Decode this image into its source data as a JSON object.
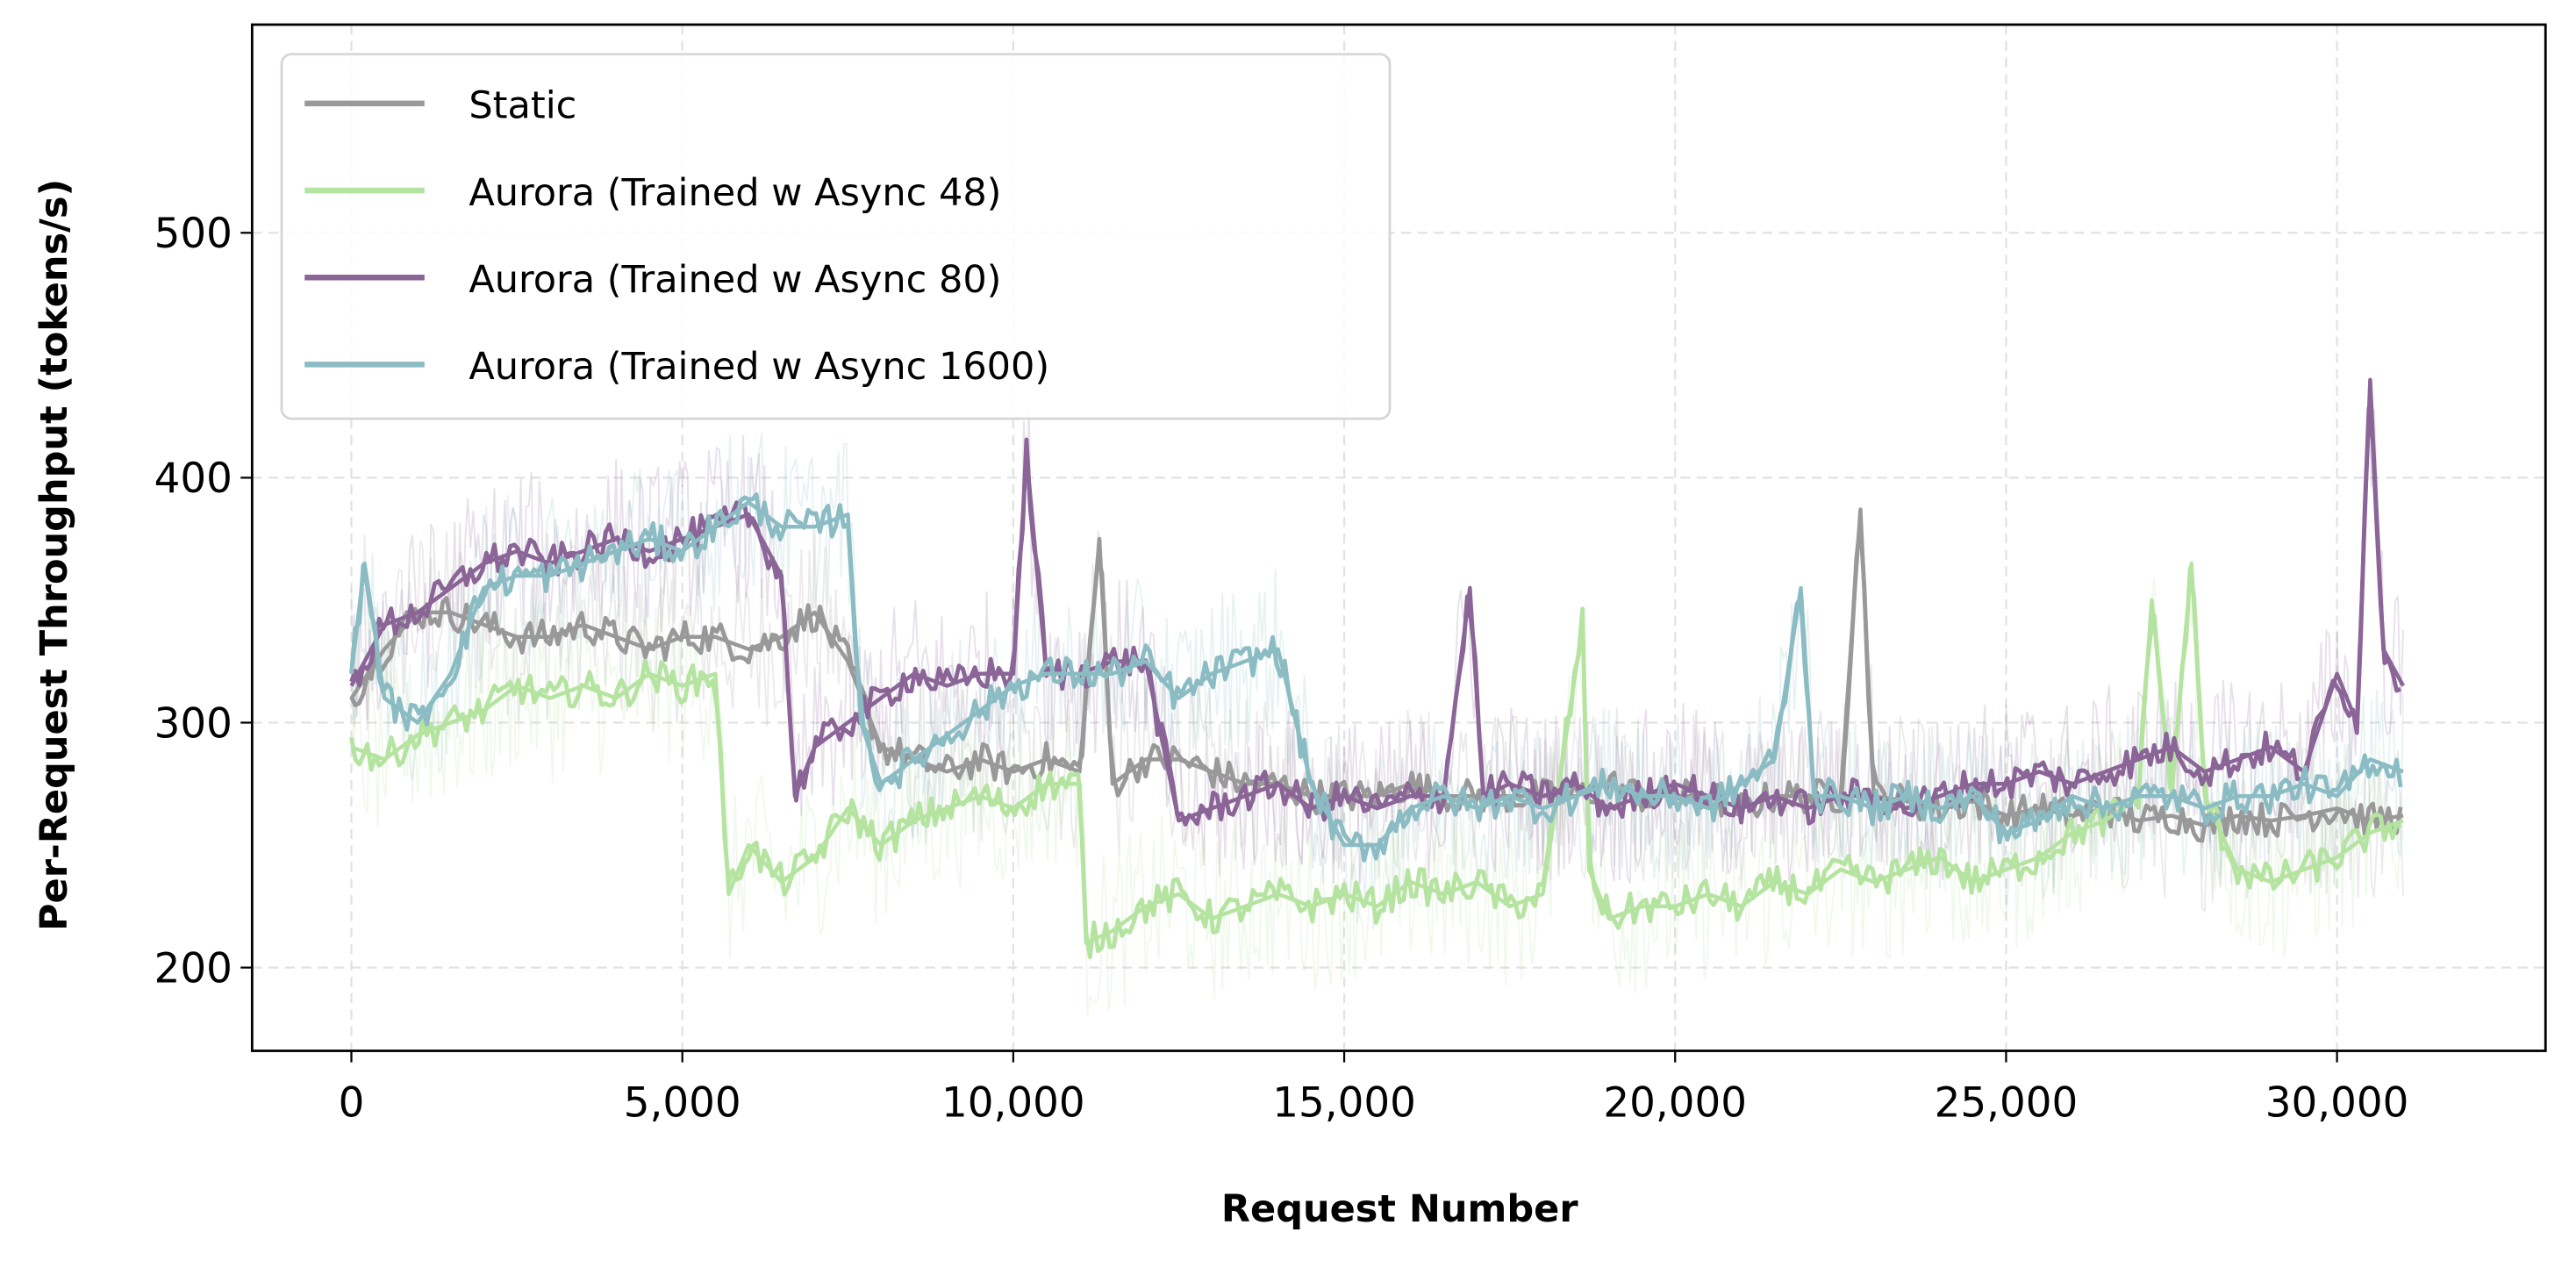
{
  "chart_data": {
    "type": "line",
    "title": "",
    "xlabel": "Request Number",
    "ylabel": "Per-Request Throughput (tokens/s)",
    "xlim": [
      -1500,
      33150
    ],
    "ylim": [
      166,
      585
    ],
    "xticks": [
      0,
      5000,
      10000,
      15000,
      20000,
      25000,
      30000
    ],
    "xtick_labels": [
      "0",
      "5,000",
      "10,000",
      "15,000",
      "20,000",
      "25,000",
      "30,000"
    ],
    "yticks": [
      200,
      300,
      400,
      500
    ],
    "ytick_labels": [
      "200",
      "300",
      "400",
      "500"
    ],
    "grid": true,
    "legend_position": "top-left",
    "series": [
      {
        "name": "Static",
        "color": "#999999",
        "x": [
          0,
          500,
          1000,
          1500,
          2000,
          2500,
          3000,
          3500,
          4000,
          4500,
          5000,
          5500,
          6000,
          6500,
          7000,
          7500,
          8000,
          8500,
          9000,
          9500,
          10000,
          10500,
          11000,
          11300,
          11500,
          12000,
          12500,
          13000,
          13500,
          14000,
          14500,
          15000,
          15500,
          16000,
          16500,
          17000,
          17500,
          18000,
          18500,
          19000,
          19500,
          20000,
          20500,
          21000,
          21500,
          22000,
          22500,
          22800,
          23000,
          23500,
          24000,
          24500,
          25000,
          25500,
          26000,
          26500,
          27000,
          27500,
          28000,
          28500,
          29000,
          29500,
          30000,
          30500,
          31000
        ],
        "y": [
          310,
          330,
          345,
          345,
          340,
          335,
          335,
          340,
          335,
          330,
          335,
          335,
          330,
          335,
          345,
          325,
          290,
          285,
          280,
          285,
          280,
          285,
          280,
          375,
          275,
          285,
          285,
          280,
          275,
          275,
          270,
          270,
          270,
          275,
          270,
          270,
          270,
          270,
          270,
          275,
          270,
          270,
          270,
          265,
          270,
          270,
          270,
          387,
          270,
          268,
          265,
          268,
          262,
          265,
          262,
          265,
          260,
          262,
          258,
          262,
          260,
          262,
          265,
          260,
          262
        ]
      },
      {
        "name": "Aurora (Trained w Async 48)",
        "color": "#b5e3a0",
        "x": [
          0,
          500,
          1000,
          1500,
          2000,
          2500,
          3000,
          3500,
          4000,
          4500,
          5000,
          5500,
          5700,
          6000,
          6500,
          7000,
          7500,
          8000,
          8500,
          9000,
          9500,
          10000,
          10500,
          11000,
          11100,
          11500,
          12000,
          12500,
          13000,
          13500,
          14000,
          14500,
          15000,
          15500,
          16000,
          16500,
          17000,
          17500,
          18000,
          18600,
          18700,
          19000,
          19500,
          20000,
          20500,
          21000,
          21500,
          22000,
          22500,
          23000,
          23500,
          24000,
          24500,
          25000,
          25500,
          26000,
          26500,
          27000,
          27200,
          27500,
          27800,
          28000,
          28500,
          29000,
          29500,
          30000,
          30500,
          31000
        ],
        "y": [
          290,
          285,
          295,
          300,
          305,
          315,
          310,
          315,
          310,
          320,
          315,
          320,
          230,
          250,
          235,
          245,
          265,
          250,
          260,
          265,
          270,
          265,
          275,
          275,
          210,
          215,
          225,
          230,
          220,
          225,
          230,
          225,
          230,
          225,
          235,
          230,
          235,
          225,
          230,
          340,
          240,
          220,
          225,
          225,
          230,
          225,
          235,
          230,
          240,
          235,
          240,
          245,
          235,
          240,
          245,
          255,
          260,
          270,
          350,
          270,
          365,
          270,
          240,
          235,
          240,
          245,
          255,
          260
        ]
      },
      {
        "name": "Aurora (Trained w Async 80)",
        "color": "#8b6597",
        "x": [
          0,
          500,
          1000,
          1500,
          2000,
          2500,
          3000,
          3500,
          4000,
          4500,
          5000,
          5500,
          6000,
          6500,
          6700,
          7000,
          7500,
          8000,
          8500,
          9000,
          9500,
          10000,
          10200,
          10500,
          11000,
          11500,
          12000,
          12500,
          13000,
          13500,
          14000,
          14500,
          15000,
          15500,
          16000,
          16500,
          16900,
          17100,
          17500,
          18000,
          18500,
          19000,
          19500,
          20000,
          20500,
          21000,
          21500,
          22000,
          22500,
          23000,
          23500,
          24000,
          24500,
          25000,
          25500,
          26000,
          26500,
          27000,
          27500,
          28000,
          28500,
          29000,
          29500,
          30000,
          30300,
          30500,
          30700,
          31000
        ],
        "y": [
          315,
          340,
          345,
          355,
          365,
          370,
          365,
          370,
          375,
          370,
          375,
          380,
          385,
          360,
          270,
          290,
          300,
          310,
          320,
          315,
          320,
          320,
          410,
          320,
          320,
          325,
          325,
          260,
          265,
          270,
          275,
          265,
          270,
          265,
          270,
          270,
          355,
          270,
          275,
          270,
          275,
          265,
          270,
          275,
          270,
          265,
          270,
          265,
          270,
          270,
          265,
          270,
          275,
          275,
          280,
          275,
          280,
          285,
          290,
          280,
          285,
          290,
          280,
          320,
          300,
          440,
          330,
          315
        ]
      },
      {
        "name": "Aurora (Trained w Async 1600)",
        "color": "#8bbcc4",
        "x": [
          0,
          200,
          500,
          1000,
          1500,
          2000,
          2500,
          3000,
          3500,
          4000,
          4500,
          5000,
          5500,
          6000,
          6500,
          7000,
          7500,
          7700,
          8000,
          8500,
          9000,
          9500,
          10000,
          10500,
          11000,
          11500,
          12000,
          12500,
          13000,
          13500,
          14000,
          14500,
          15000,
          15500,
          16000,
          16500,
          17000,
          17500,
          18000,
          18500,
          19000,
          19500,
          20000,
          20500,
          21000,
          21500,
          21900,
          22100,
          22500,
          23000,
          23500,
          24000,
          24500,
          25000,
          25500,
          26000,
          26500,
          27000,
          27500,
          28000,
          28500,
          29000,
          29500,
          30000,
          30500,
          31000
        ],
        "y": [
          320,
          365,
          310,
          300,
          320,
          355,
          360,
          360,
          365,
          370,
          375,
          370,
          380,
          390,
          380,
          380,
          385,
          300,
          275,
          285,
          295,
          305,
          315,
          320,
          320,
          320,
          325,
          310,
          320,
          325,
          330,
          275,
          250,
          250,
          265,
          270,
          265,
          270,
          265,
          270,
          275,
          270,
          270,
          265,
          275,
          285,
          355,
          270,
          270,
          265,
          270,
          265,
          270,
          255,
          260,
          270,
          265,
          270,
          270,
          265,
          270,
          270,
          275,
          270,
          285,
          280
        ]
      }
    ]
  }
}
